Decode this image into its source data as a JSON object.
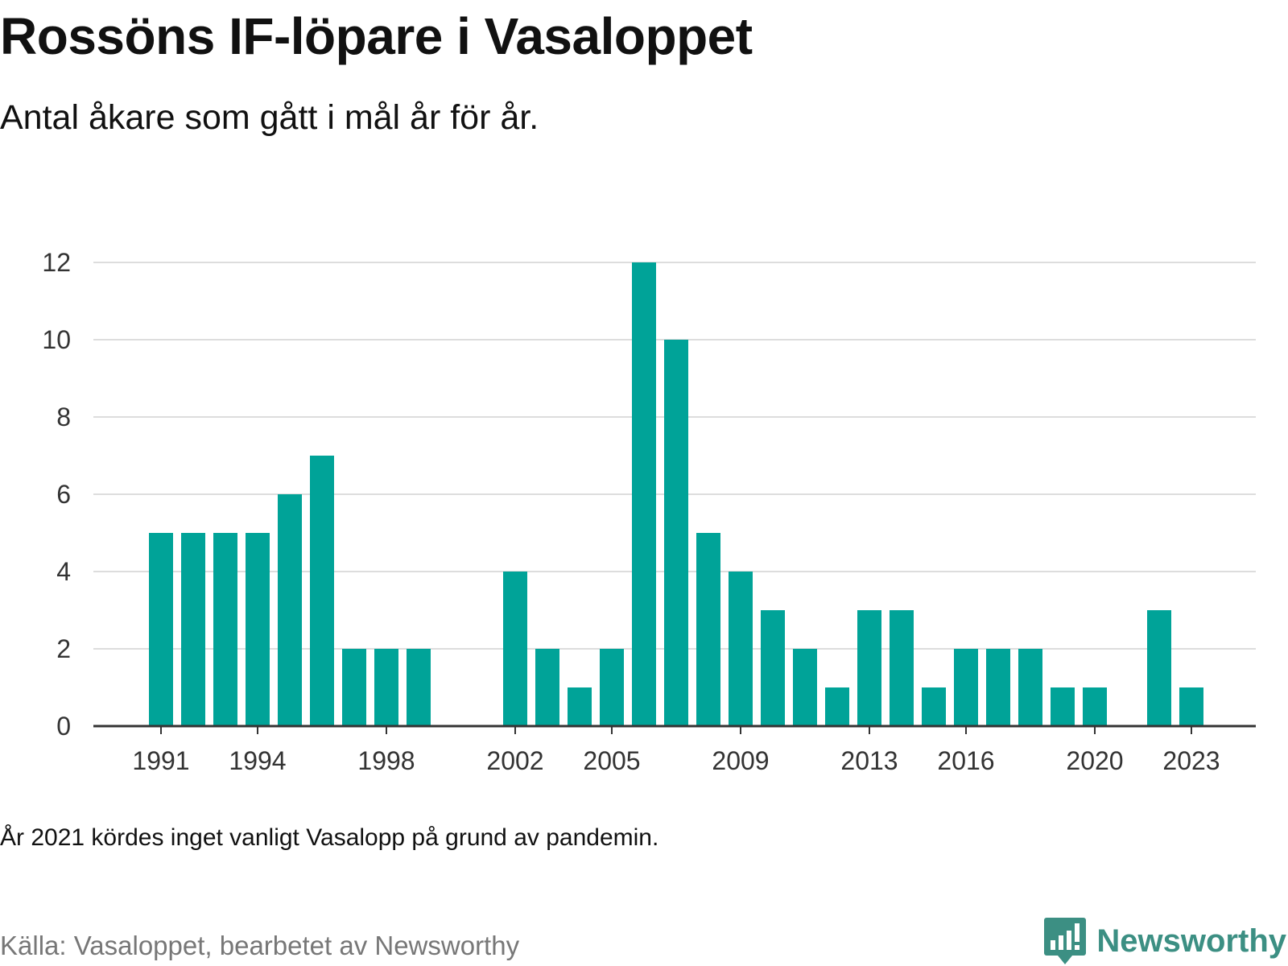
{
  "title": "Rossöns IF-löpare i Vasaloppet",
  "subtitle": "Antal åkare som gått i mål år för år.",
  "note": "År 2021 kördes inget vanligt Vasalopp på grund av pandemin.",
  "source": "Källa: Vasaloppet, bearbetet av Newsworthy",
  "brand": {
    "name": "Newsworthy",
    "icon": "newsworthy-logo-icon"
  },
  "colors": {
    "bar": "#00a398",
    "grid": "#dddddd",
    "axis": "#333333",
    "brand": "#3c8f83"
  },
  "chart_data": {
    "type": "bar",
    "categories": [
      "1991",
      "1992",
      "1993",
      "1994",
      "1995",
      "1996",
      "1997",
      "1998",
      "1999",
      "2000",
      "2001",
      "2002",
      "2003",
      "2004",
      "2005",
      "2006",
      "2007",
      "2008",
      "2009",
      "2010",
      "2011",
      "2012",
      "2013",
      "2014",
      "2015",
      "2016",
      "2017",
      "2018",
      "2019",
      "2020",
      "2021",
      "2022",
      "2023"
    ],
    "values": [
      5,
      5,
      5,
      5,
      6,
      7,
      2,
      2,
      2,
      0,
      0,
      4,
      2,
      1,
      2,
      12,
      10,
      5,
      4,
      3,
      2,
      1,
      3,
      3,
      1,
      2,
      2,
      2,
      1,
      1,
      0,
      3,
      1
    ],
    "x_tick_labels": [
      "1991",
      "1994",
      "1998",
      "2002",
      "2005",
      "2009",
      "2013",
      "2016",
      "2020",
      "2023"
    ],
    "y_ticks": [
      0,
      2,
      4,
      6,
      8,
      10,
      12
    ],
    "ylim": [
      0,
      12
    ],
    "grid": true,
    "legend": "none"
  }
}
